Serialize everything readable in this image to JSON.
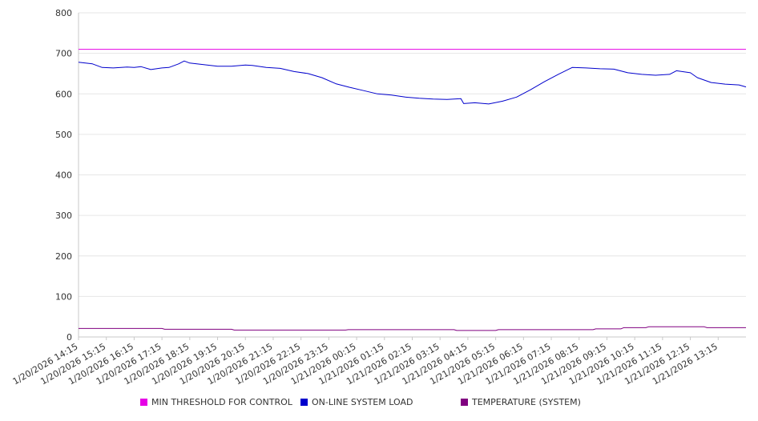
{
  "chart_data": {
    "type": "line",
    "title": "",
    "xlabel": "",
    "ylabel": "",
    "ylim": [
      0,
      800
    ],
    "yticks": [
      0,
      100,
      200,
      300,
      400,
      500,
      600,
      700,
      800
    ],
    "xtick_labels": [
      "1/20/2026 14:15",
      "1/20/2026 15:15",
      "1/20/2026 16:15",
      "1/20/2026 17:15",
      "1/20/2026 18:15",
      "1/20/2026 19:15",
      "1/20/2026 20:15",
      "1/20/2026 21:15",
      "1/20/2026 22:15",
      "1/20/2026 23:15",
      "1/21/2026 00:15",
      "1/21/2026 01:15",
      "1/21/2026 02:15",
      "1/21/2026 03:15",
      "1/21/2026 04:15",
      "1/21/2026 05:15",
      "1/21/2026 06:15",
      "1/21/2026 07:15",
      "1/21/2026 08:15",
      "1/21/2026 09:15",
      "1/21/2026 10:15",
      "1/21/2026 11:15",
      "1/21/2026 12:15",
      "1/21/2026 13:15"
    ],
    "x_hours": [
      0,
      24
    ],
    "series": [
      {
        "name": "MIN THRESHOLD FOR CONTROL",
        "color": "#e600e6",
        "points": [
          [
            0,
            710
          ],
          [
            24,
            710
          ]
        ]
      },
      {
        "name": "ON-LINE SYSTEM LOAD",
        "color": "#0000cc",
        "points": [
          [
            0,
            678
          ],
          [
            0.5,
            674
          ],
          [
            0.85,
            665
          ],
          [
            1.25,
            664
          ],
          [
            1.75,
            666
          ],
          [
            2,
            665
          ],
          [
            2.25,
            667
          ],
          [
            2.6,
            660
          ],
          [
            3,
            664
          ],
          [
            3.25,
            665
          ],
          [
            3.6,
            674
          ],
          [
            3.8,
            681
          ],
          [
            4,
            676
          ],
          [
            4.5,
            672
          ],
          [
            5,
            668
          ],
          [
            5.5,
            668
          ],
          [
            6,
            671
          ],
          [
            6.25,
            670
          ],
          [
            6.75,
            665
          ],
          [
            7.25,
            663
          ],
          [
            7.75,
            655
          ],
          [
            8.25,
            650
          ],
          [
            8.75,
            640
          ],
          [
            9.25,
            625
          ],
          [
            9.75,
            616
          ],
          [
            10.25,
            608
          ],
          [
            10.75,
            600
          ],
          [
            11.25,
            597
          ],
          [
            11.75,
            592
          ],
          [
            12.25,
            589
          ],
          [
            12.75,
            587
          ],
          [
            13.25,
            586
          ],
          [
            13.75,
            588
          ],
          [
            13.85,
            576
          ],
          [
            14.25,
            578
          ],
          [
            14.75,
            575
          ],
          [
            15.25,
            582
          ],
          [
            15.75,
            592
          ],
          [
            16.25,
            610
          ],
          [
            16.75,
            630
          ],
          [
            17.25,
            648
          ],
          [
            17.75,
            665
          ],
          [
            18.25,
            664
          ],
          [
            18.75,
            662
          ],
          [
            19.25,
            661
          ],
          [
            19.75,
            652
          ],
          [
            20.25,
            648
          ],
          [
            20.75,
            646
          ],
          [
            21.25,
            648
          ],
          [
            21.5,
            657
          ],
          [
            22,
            652
          ],
          [
            22.25,
            640
          ],
          [
            22.75,
            628
          ],
          [
            23.25,
            624
          ],
          [
            23.75,
            622
          ],
          [
            24,
            617
          ]
        ]
      },
      {
        "name": "TEMPERATURE (SYSTEM)",
        "color": "#800080",
        "points": [
          [
            0,
            21
          ],
          [
            3,
            21
          ],
          [
            3.1,
            19
          ],
          [
            5.5,
            19
          ],
          [
            5.6,
            17
          ],
          [
            9.6,
            17
          ],
          [
            9.7,
            18
          ],
          [
            13.5,
            18
          ],
          [
            13.6,
            16
          ],
          [
            15,
            16
          ],
          [
            15.1,
            18
          ],
          [
            18.5,
            18
          ],
          [
            18.6,
            20
          ],
          [
            19.5,
            20
          ],
          [
            19.6,
            23
          ],
          [
            20.4,
            23
          ],
          [
            20.5,
            25
          ],
          [
            22.5,
            25
          ],
          [
            22.6,
            23
          ],
          [
            24,
            23
          ]
        ]
      }
    ],
    "legend": {
      "position": "bottom",
      "entries": [
        {
          "label": "MIN THRESHOLD FOR CONTROL",
          "color": "#e600e6"
        },
        {
          "label": "ON-LINE SYSTEM LOAD",
          "color": "#0000cc"
        },
        {
          "label": "TEMPERATURE (SYSTEM)",
          "color": "#800080"
        }
      ]
    },
    "grid": true
  }
}
